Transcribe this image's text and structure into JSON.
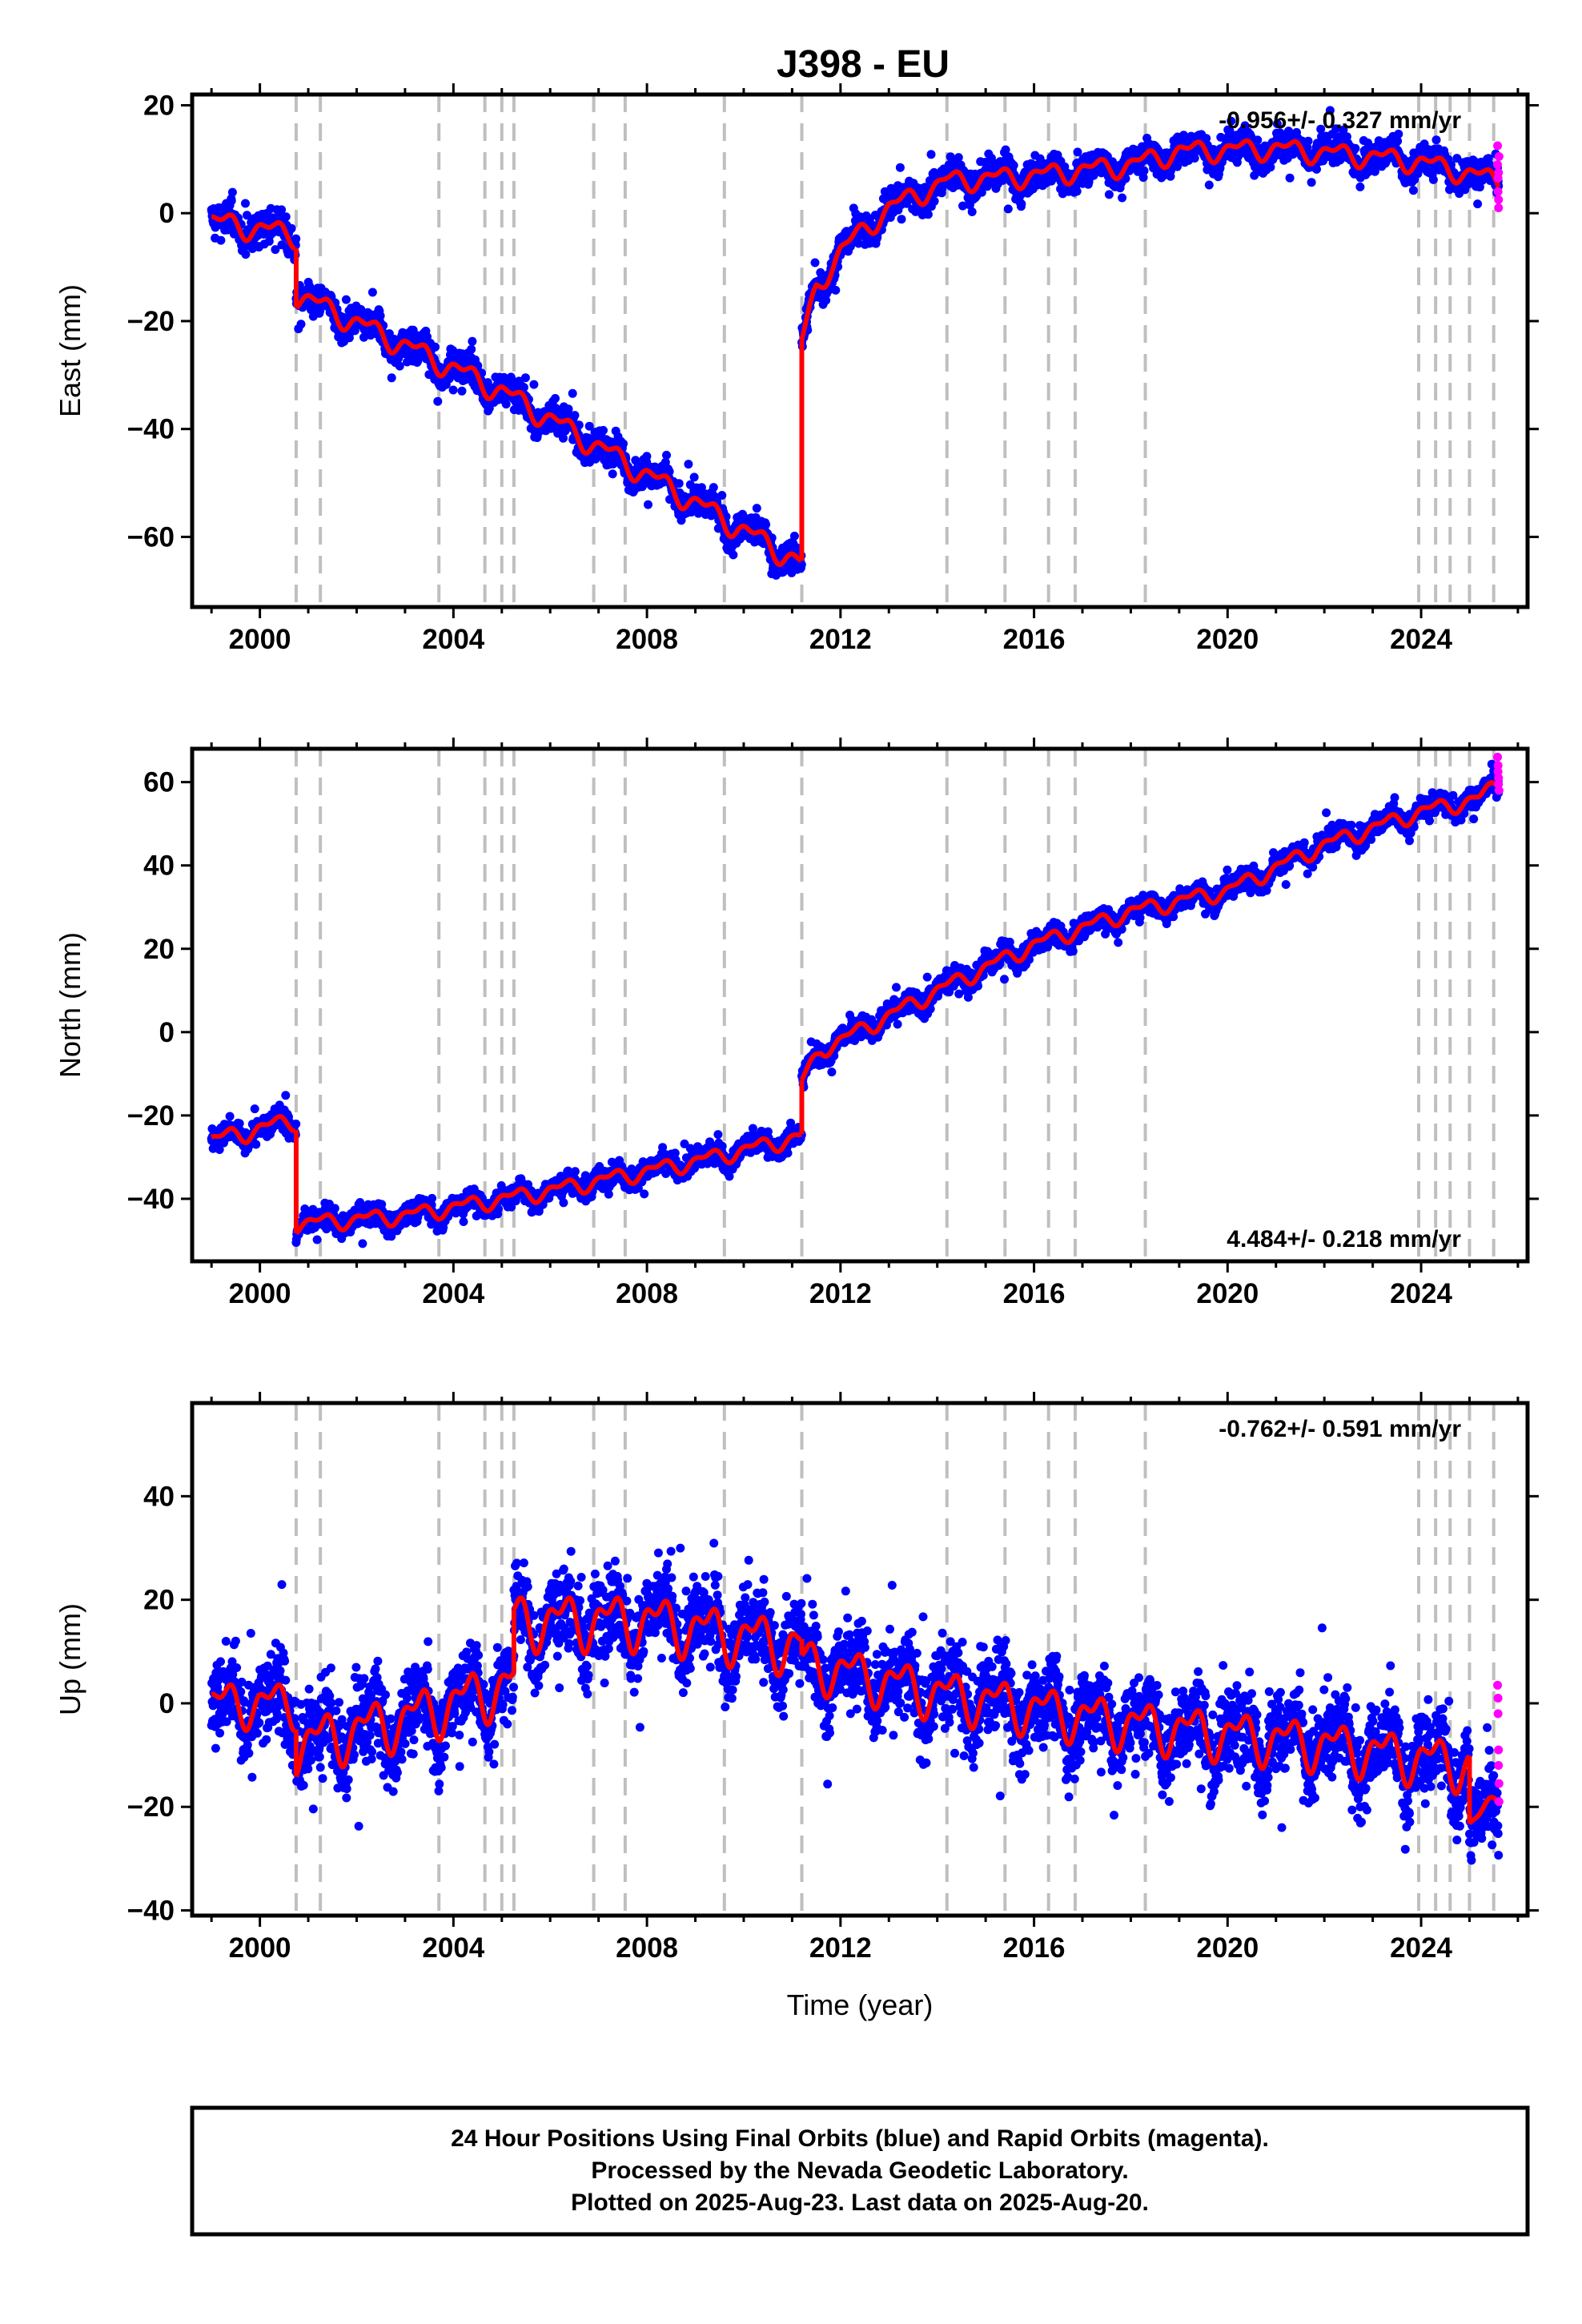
{
  "chart_data": {
    "type": "scatter",
    "title": "J398 - EU",
    "xlabel": "Time (year)",
    "xlim": [
      1998.6,
      2026.2
    ],
    "xticks": [
      2000,
      2004,
      2008,
      2012,
      2016,
      2020,
      2024
    ],
    "xtick_labels": [
      "2000",
      "2004",
      "2008",
      "2012",
      "2016",
      "2020",
      "2024"
    ],
    "grid": false,
    "event_lines": [
      2000.75,
      2001.25,
      2003.7,
      2004.65,
      2005.0,
      2005.25,
      2006.9,
      2007.55,
      2009.6,
      2011.2,
      2014.2,
      2015.4,
      2016.3,
      2016.85,
      2018.3,
      2023.95,
      2024.3,
      2024.6,
      2025.0,
      2025.5
    ],
    "series_legend": {
      "final": {
        "description": "Final Orbits (blue)",
        "color": "#0000ff"
      },
      "rapid": {
        "description": "Rapid Orbits (magenta)",
        "color": "#ff00ff"
      },
      "model": {
        "color": "#ff0000"
      },
      "event_line_color": "#bfbfbf"
    },
    "panels": [
      {
        "name": "east",
        "ylabel": "East (mm)",
        "ylim": [
          -73,
          22
        ],
        "yticks": [
          20,
          0,
          -20,
          -40,
          -60
        ],
        "ytick_labels": [
          "20",
          "0",
          "−20",
          "−40",
          "−60"
        ],
        "rate_text": "-0.956+/- 0.327 mm/yr",
        "rate_position": "top-right",
        "model": {
          "segments": [
            {
              "start": 1999.0,
              "end": 2000.75,
              "trend": [
                [
                  1999.0,
                  -1.5
                ],
                [
                  2000.75,
                  -4
                ]
              ],
              "amp": 2.2
            },
            {
              "start": 2000.75,
              "end": 2011.2,
              "trend": [
                [
                  2000.75,
                  -15
                ],
                [
                  2005.0,
                  -33
                ],
                [
                  2011.2,
                  -65
                ]
              ],
              "amp": 2.2
            },
            {
              "start": 2011.2,
              "end": 2025.6,
              "trend": [
                [
                  2011.2,
                  -24
                ],
                [
                  2011.5,
                  -14
                ],
                [
                  2012.0,
                  -7
                ],
                [
                  2012.5,
                  -3
                ],
                [
                  2013.0,
                  1
                ],
                [
                  2014.2,
                  6
                ],
                [
                  2016.0,
                  7
                ],
                [
                  2018.0,
                  9
                ],
                [
                  2019.0,
                  11.5
                ],
                [
                  2021.0,
                  12
                ],
                [
                  2023.0,
                  10.5
                ],
                [
                  2024.0,
                  9.5
                ],
                [
                  2025.6,
                  6
                ]
              ],
              "amp": 2.0
            }
          ]
        },
        "scatter_noise": 2.4,
        "rapid_points": {
          "x": [
            2025.58,
            2025.58,
            2025.59,
            2025.59,
            2025.6,
            2025.6,
            2025.6,
            2025.61
          ],
          "y": [
            12.5,
            9.0,
            6.5,
            4.0,
            2.5,
            1.0,
            7.5,
            10.5
          ]
        }
      },
      {
        "name": "north",
        "ylabel": "North (mm)",
        "ylim": [
          -55,
          68
        ],
        "yticks": [
          60,
          40,
          20,
          0,
          -20,
          -40
        ],
        "ytick_labels": [
          "60",
          "40",
          "20",
          "0",
          "−20",
          "−40"
        ],
        "rate_text": "4.484+/- 0.218 mm/yr",
        "rate_position": "bottom-right",
        "model": {
          "segments": [
            {
              "start": 1999.0,
              "end": 2000.75,
              "trend": [
                [
                  1999.0,
                  -26
                ],
                [
                  2000.75,
                  -21
                ]
              ],
              "amp": 2.2
            },
            {
              "start": 2000.75,
              "end": 2011.2,
              "trend": [
                [
                  2000.75,
                  -46
                ],
                [
                  2003.0,
                  -44
                ],
                [
                  2006.0,
                  -38
                ],
                [
                  2009.0,
                  -31
                ],
                [
                  2011.2,
                  -25
                ]
              ],
              "amp": 2.0
            },
            {
              "start": 2011.2,
              "end": 2025.6,
              "trend": [
                [
                  2011.2,
                  -12
                ],
                [
                  2011.6,
                  -4
                ],
                [
                  2012.0,
                  -2
                ],
                [
                  2014.0,
                  10
                ],
                [
                  2016.0,
                  21
                ],
                [
                  2018.0,
                  29
                ],
                [
                  2020.0,
                  34
                ],
                [
                  2022.0,
                  45
                ],
                [
                  2024.0,
                  53
                ],
                [
                  2025.2,
                  56
                ],
                [
                  2025.6,
                  60
                ]
              ],
              "amp": 2.0
            }
          ]
        },
        "scatter_noise": 2.2,
        "rapid_points": {
          "x": [
            2025.58,
            2025.59,
            2025.59,
            2025.6,
            2025.6,
            2025.61
          ],
          "y": [
            66,
            64,
            62.5,
            61,
            59.5,
            58
          ]
        }
      },
      {
        "name": "up",
        "ylabel": "Up (mm)",
        "ylim": [
          -41,
          58
        ],
        "yticks": [
          40,
          20,
          0,
          -20,
          -40
        ],
        "ytick_labels": [
          "40",
          "20",
          "0",
          "−20",
          "−40"
        ],
        "rate_text": "-0.762+/- 0.591 mm/yr",
        "rate_position": "top-right",
        "model": {
          "segments": [
            {
              "start": 1999.0,
              "end": 2000.75,
              "trend": [
                [
                  1999.0,
                  0
                ],
                [
                  2000.75,
                  0
                ]
              ],
              "amp": 4.5
            },
            {
              "start": 2000.75,
              "end": 2005.25,
              "trend": [
                [
                  2000.75,
                  -8
                ],
                [
                  2003.0,
                  -3
                ],
                [
                  2005.25,
                  4
                ]
              ],
              "amp": 5.5
            },
            {
              "start": 2005.25,
              "end": 2011.2,
              "trend": [
                [
                  2005.25,
                  16
                ],
                [
                  2008.0,
                  16
                ],
                [
                  2011.2,
                  11
                ]
              ],
              "amp": 5.5
            },
            {
              "start": 2011.2,
              "end": 2025.0,
              "trend": [
                [
                  2011.2,
                  8
                ],
                [
                  2014.0,
                  2
                ],
                [
                  2018.0,
                  -4
                ],
                [
                  2022.0,
                  -8
                ],
                [
                  2025.0,
                  -12
                ]
              ],
              "amp": 5.0
            },
            {
              "start": 2025.0,
              "end": 2025.6,
              "trend": [
                [
                  2025.0,
                  -24
                ],
                [
                  2025.6,
                  -18
                ]
              ],
              "amp": 2.0
            }
          ]
        },
        "scatter_noise": 7.0,
        "rapid_points": {
          "x": [
            2025.58,
            2025.59,
            2025.59,
            2025.6,
            2025.6,
            2025.61,
            2025.61
          ],
          "y": [
            3.5,
            1.0,
            -2.0,
            -9.0,
            -12.0,
            -15.5,
            -19.0
          ]
        }
      }
    ]
  },
  "footer": {
    "line1": "24 Hour Positions Using Final Orbits (blue) and Rapid Orbits (magenta).",
    "line2": "Processed by the Nevada Geodetic Laboratory.",
    "line3": "Plotted on 2025-Aug-23. Last data on 2025-Aug-20."
  }
}
